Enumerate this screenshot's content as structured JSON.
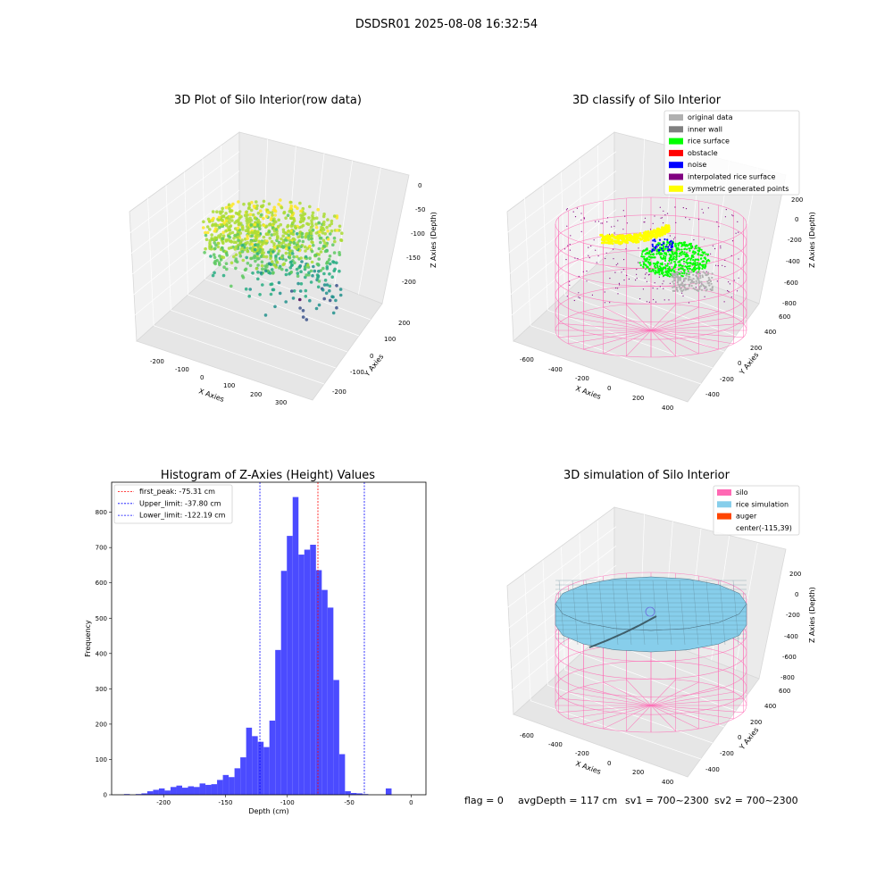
{
  "suptitle": "DSDSR01 2025-08-08 16:32:54",
  "footer": {
    "flag": "flag = 0",
    "avg_depth": "avgDepth = 117 cm",
    "sv1": "sv1 = 700~2300",
    "sv2": "sv2 = 700~2300"
  },
  "colors": {
    "hist_bar": "#4b4bff",
    "peak_line": "#ff0000",
    "limit_line": "#0000ff",
    "silo": "#ff69b4",
    "rice_sim": "#87ceeb",
    "auger": "#ff4500",
    "original": "#b0b0b0",
    "inner_wall": "#808080",
    "rice_surface": "#00ff00",
    "obstacle": "#ff0000",
    "noise": "#0000ff",
    "interp": "#800080",
    "symmetric": "#ffff00"
  },
  "chart_data": [
    {
      "type": "scatter",
      "subtype": "3d",
      "title": "3D Plot of Silo Interior(row data)",
      "xlabel": "X Axies",
      "ylabel": "Y Axies",
      "zlabel": "Z Axies (Depth)",
      "x_ticks": [
        "-200",
        "-100",
        "0",
        "100",
        "200",
        "300"
      ],
      "y_ticks": [
        "-200",
        "-100",
        "0",
        "100",
        "200"
      ],
      "z_ticks": [
        "0",
        "-50",
        "-100",
        "-150",
        "-200"
      ],
      "colormap": "viridis"
    },
    {
      "type": "scatter",
      "subtype": "3d",
      "title": "3D classify of Silo Interior",
      "xlabel": "X Axies",
      "ylabel": "Y Axies",
      "zlabel": "Z Axies (Depth)",
      "x_ticks": [
        "-600",
        "-400",
        "-200",
        "0",
        "200",
        "400"
      ],
      "y_ticks": [
        "-400",
        "-200",
        "0",
        "200",
        "400",
        "600"
      ],
      "z_ticks": [
        "200",
        "0",
        "-200",
        "-400",
        "-600",
        "-800"
      ],
      "legend_position": "top-right",
      "legend": [
        {
          "label": "original data",
          "color": "#b0b0b0"
        },
        {
          "label": "inner wall",
          "color": "#808080"
        },
        {
          "label": "rice surface",
          "color": "#00ff00"
        },
        {
          "label": "obstacle",
          "color": "#ff0000"
        },
        {
          "label": "noise",
          "color": "#0000ff"
        },
        {
          "label": "interpolated rice surface",
          "color": "#800080"
        },
        {
          "label": "symmetric generated points",
          "color": "#ffff00"
        }
      ]
    },
    {
      "type": "bar",
      "subtype": "histogram",
      "title": "Histogram of Z-Axies (Height) Values",
      "xlabel": "Depth (cm)",
      "ylabel": "Frequency",
      "xlim": [
        -242,
        12
      ],
      "ylim": [
        0,
        885
      ],
      "x_ticks": [
        -200,
        -150,
        -100,
        -50,
        0
      ],
      "y_ticks": [
        0,
        100,
        200,
        300,
        400,
        500,
        600,
        700,
        800
      ],
      "bin_width": 4.7,
      "bin_start": -232,
      "values": [
        2,
        0,
        2,
        4,
        10,
        14,
        18,
        12,
        22,
        26,
        20,
        24,
        22,
        32,
        28,
        30,
        42,
        56,
        50,
        75,
        106,
        190,
        166,
        150,
        135,
        210,
        410,
        634,
        733,
        843,
        680,
        694,
        708,
        636,
        580,
        530,
        325,
        115,
        10,
        5,
        4,
        2,
        0,
        0,
        0,
        18
      ],
      "vlines": [
        {
          "label": "first_peak: -75.31 cm",
          "x": -75.31,
          "color": "#ff0000"
        },
        {
          "label": "Upper_limit: -37.80 cm",
          "x": -37.8,
          "color": "#0000ff"
        },
        {
          "label": "Lower_limit: -122.19 cm",
          "x": -122.19,
          "color": "#0000ff"
        }
      ],
      "legend_position": "top-left"
    },
    {
      "type": "area",
      "subtype": "3d-surface",
      "title": "3D simulation of Silo Interior",
      "xlabel": "X Axies",
      "ylabel": "Y Axies",
      "zlabel": "Z Axies (Depth)",
      "x_ticks": [
        "-600",
        "-400",
        "-200",
        "0",
        "200",
        "400"
      ],
      "y_ticks": [
        "-400",
        "-200",
        "0",
        "200",
        "400",
        "600"
      ],
      "z_ticks": [
        "200",
        "0",
        "-200",
        "-400",
        "-600",
        "-800"
      ],
      "legend_position": "top-right",
      "legend": [
        {
          "label": "silo",
          "color": "#ff69b4"
        },
        {
          "label": "rice simulation",
          "color": "#87ceeb"
        },
        {
          "label": "auger",
          "color": "#ff4500"
        },
        {
          "label": "center(-115,39)",
          "color": ""
        }
      ]
    }
  ]
}
